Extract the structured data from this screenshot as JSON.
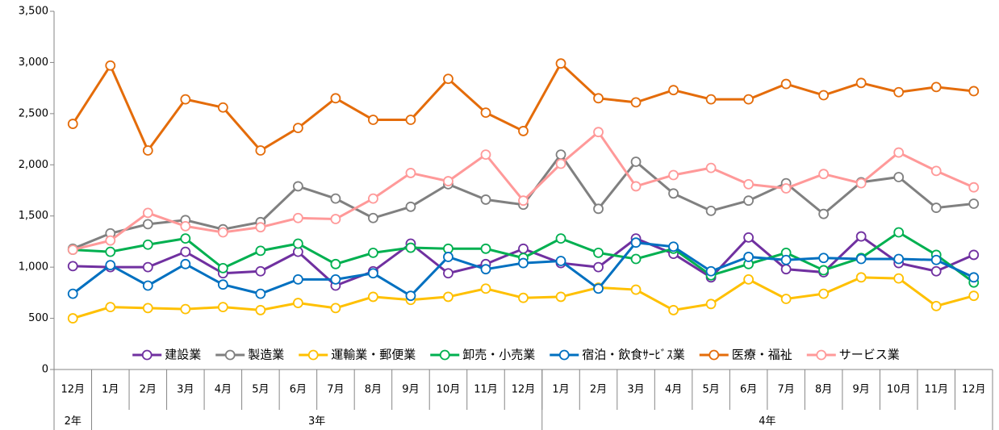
{
  "chart_data": {
    "type": "line",
    "category_groups": [
      {
        "name": "2年",
        "categories": [
          "12月"
        ]
      },
      {
        "name": "3年",
        "categories": [
          "1月",
          "2月",
          "3月",
          "4月",
          "5月",
          "6月",
          "7月",
          "8月",
          "9月",
          "10月",
          "11月",
          "12月"
        ]
      },
      {
        "name": "4年",
        "categories": [
          "1月",
          "2月",
          "3月",
          "4月",
          "5月",
          "6月",
          "7月",
          "8月",
          "9月",
          "10月",
          "11月",
          "12月"
        ]
      }
    ],
    "series": [
      {
        "name": "建設業",
        "color": "#7030a0",
        "values": [
          1010,
          1000,
          1000,
          1150,
          940,
          960,
          1150,
          820,
          960,
          1230,
          940,
          1030,
          1180,
          1040,
          1000,
          1280,
          1130,
          900,
          1290,
          980,
          950,
          1300,
          1040,
          960,
          1120
        ]
      },
      {
        "name": "製造業",
        "color": "#808080",
        "values": [
          1180,
          1330,
          1420,
          1460,
          1370,
          1440,
          1790,
          1670,
          1480,
          1590,
          1810,
          1660,
          1610,
          2100,
          1570,
          2030,
          1720,
          1550,
          1650,
          1820,
          1520,
          1830,
          1880,
          1580,
          1620
        ]
      },
      {
        "name": "運輸業・郵便業",
        "color": "#ffc000",
        "values": [
          500,
          610,
          600,
          590,
          610,
          580,
          650,
          600,
          710,
          680,
          710,
          790,
          700,
          710,
          800,
          780,
          580,
          640,
          880,
          690,
          740,
          900,
          890,
          620,
          720
        ]
      },
      {
        "name": "卸売・小売業",
        "color": "#00b050",
        "values": [
          1170,
          1150,
          1220,
          1280,
          990,
          1160,
          1230,
          1030,
          1140,
          1190,
          1180,
          1180,
          1090,
          1280,
          1140,
          1080,
          1180,
          920,
          1030,
          1140,
          970,
          1090,
          1340,
          1120,
          850
        ]
      },
      {
        "name": "宿泊・飲食ｻｰﾋﾞｽ業",
        "color": "#0070c0",
        "values": [
          740,
          1020,
          820,
          1030,
          830,
          740,
          880,
          880,
          940,
          720,
          1100,
          980,
          1040,
          1060,
          790,
          1240,
          1200,
          960,
          1100,
          1070,
          1090,
          1080,
          1080,
          1070,
          900
        ]
      },
      {
        "name": "医療・福祉",
        "color": "#e46c0a",
        "values": [
          2400,
          2970,
          2140,
          2640,
          2560,
          2140,
          2360,
          2650,
          2440,
          2440,
          2840,
          2510,
          2330,
          2990,
          2650,
          2610,
          2730,
          2640,
          2640,
          2790,
          2680,
          2800,
          2710,
          2760,
          2720
        ]
      },
      {
        "name": "サービス業",
        "color": "#ff9999",
        "values": [
          1170,
          1260,
          1530,
          1400,
          1340,
          1390,
          1480,
          1470,
          1670,
          1920,
          1840,
          2100,
          1650,
          2010,
          2320,
          1790,
          1900,
          1970,
          1810,
          1770,
          1910,
          1820,
          2120,
          1940,
          1780
        ]
      }
    ],
    "ylim": [
      0,
      3500
    ],
    "yticks": [
      0,
      {
        "value": 500,
        "label": "500"
      },
      {
        "value": 1000,
        "label": "1,000"
      },
      {
        "value": 1500,
        "label": "1,500"
      },
      {
        "value": 2000,
        "label": "2,000"
      },
      {
        "value": 2500,
        "label": "2,500"
      },
      {
        "value": 3000,
        "label": "3,000"
      },
      {
        "value": 3500,
        "label": "3,500"
      }
    ],
    "grid": false,
    "legend": "bottom"
  }
}
